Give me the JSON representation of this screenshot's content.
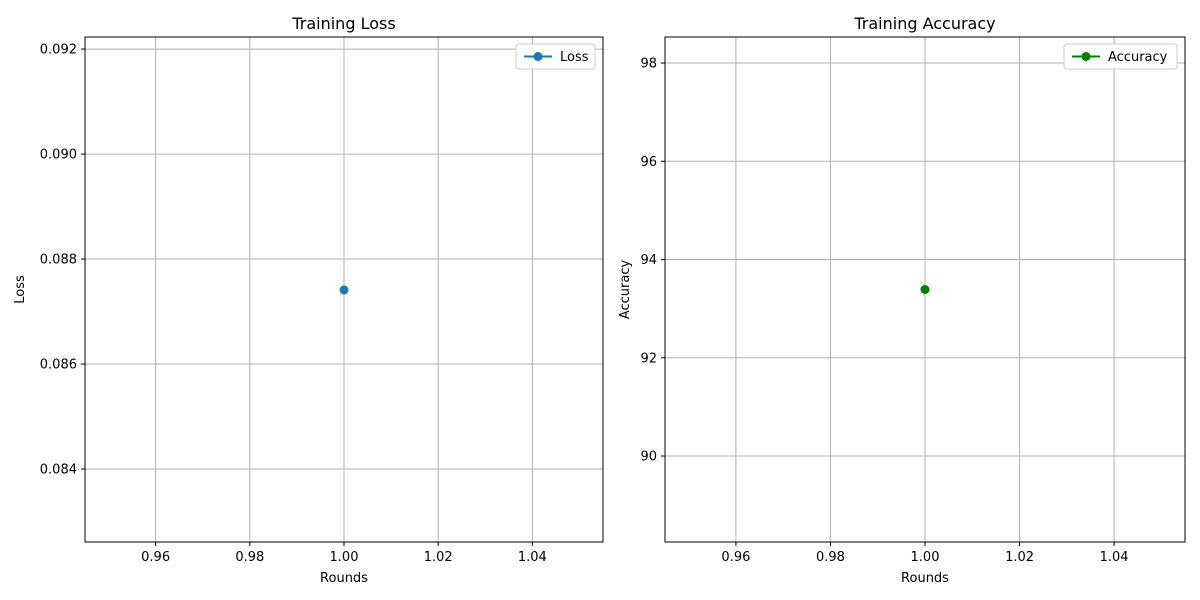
{
  "chart_data": [
    {
      "type": "line",
      "title": "Training Loss",
      "xlabel": "Rounds",
      "ylabel": "Loss",
      "xlim": [
        0.945,
        1.055
      ],
      "ylim": [
        0.08261,
        0.09223
      ],
      "xticks": [
        0.96,
        0.98,
        1.0,
        1.02,
        1.04
      ],
      "xtick_labels": [
        "0.96",
        "0.98",
        "1.00",
        "1.02",
        "1.04"
      ],
      "yticks": [
        0.084,
        0.086,
        0.088,
        0.09,
        0.092
      ],
      "ytick_labels": [
        "0.084",
        "0.086",
        "0.088",
        "0.090",
        "0.092"
      ],
      "grid": true,
      "legend": "top-right",
      "series": [
        {
          "name": "Loss",
          "color": "#1f77b4",
          "marker": "circle",
          "x": [
            1.0
          ],
          "y": [
            0.08741
          ]
        }
      ]
    },
    {
      "type": "line",
      "title": "Training Accuracy",
      "xlabel": "Rounds",
      "ylabel": "Accuracy",
      "xlim": [
        0.945,
        1.055
      ],
      "ylim": [
        88.25,
        98.53
      ],
      "xticks": [
        0.96,
        0.98,
        1.0,
        1.02,
        1.04
      ],
      "xtick_labels": [
        "0.96",
        "0.98",
        "1.00",
        "1.02",
        "1.04"
      ],
      "yticks": [
        90,
        92,
        94,
        96,
        98
      ],
      "ytick_labels": [
        "90",
        "92",
        "94",
        "96",
        "98"
      ],
      "grid": true,
      "legend": "top-right",
      "series": [
        {
          "name": "Accuracy",
          "color": "#008000",
          "marker": "circle",
          "x": [
            1.0
          ],
          "y": [
            93.39
          ]
        }
      ]
    }
  ]
}
